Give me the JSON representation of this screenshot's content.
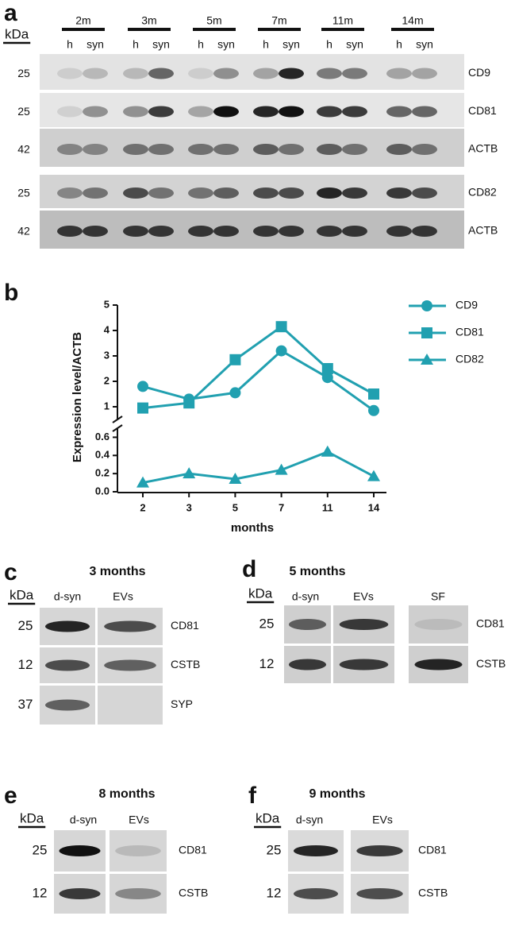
{
  "panel_a": {
    "label": "a",
    "kda_header": "kDa",
    "groups": [
      {
        "label": "2m",
        "lanes": [
          "h",
          "syn"
        ]
      },
      {
        "label": "3m",
        "lanes": [
          "h",
          "syn"
        ]
      },
      {
        "label": "5m",
        "lanes": [
          "h",
          "syn"
        ]
      },
      {
        "label": "7m",
        "lanes": [
          "h",
          "syn"
        ]
      },
      {
        "label": "11m",
        "lanes": [
          "h",
          "syn"
        ]
      },
      {
        "label": "14m",
        "lanes": [
          "h",
          "syn"
        ]
      }
    ],
    "rows": [
      {
        "kda": 25,
        "protein": "CD9"
      },
      {
        "kda": 25,
        "protein": "CD81"
      },
      {
        "kda": 42,
        "protein": "ACTB"
      },
      {
        "kda": 25,
        "protein": "CD82"
      },
      {
        "kda": 42,
        "protein": "ACTB"
      }
    ]
  },
  "chart_data": {
    "type": "line",
    "panel_label": "b",
    "ylabel": "Expression level/ACTB",
    "xlabel": "months",
    "categories": [
      "2",
      "3",
      "5",
      "7",
      "11",
      "14"
    ],
    "ysegments": [
      {
        "ylim": [
          0,
          0.7
        ],
        "yticks": [
          {
            "value": 0,
            "label": "0.0"
          },
          0.2,
          0.4,
          0.6
        ]
      },
      {
        "ylim": [
          0.5,
          5
        ],
        "yticks": [
          1,
          2,
          3,
          4,
          5
        ]
      }
    ],
    "series": [
      {
        "name": "CD9",
        "color": "#21a0b0",
        "marker": "circle",
        "values": [
          1.8,
          1.3,
          1.55,
          3.2,
          2.15,
          0.85
        ]
      },
      {
        "name": "CD81",
        "color": "#21a0b0",
        "marker": "square",
        "values": [
          0.95,
          1.15,
          2.85,
          4.15,
          2.5,
          1.5
        ]
      },
      {
        "name": "CD82",
        "color": "#21a0b0",
        "marker": "triangle",
        "values": [
          0.1,
          0.2,
          0.14,
          0.24,
          0.44,
          0.17
        ]
      }
    ],
    "legend": "upper right"
  },
  "panel_c": {
    "label": "c",
    "title": "3 months",
    "kda_header": "kDa",
    "lanes": [
      "d-syn",
      "EVs"
    ],
    "rows": [
      {
        "kda": 25,
        "protein": "CD81"
      },
      {
        "kda": 12,
        "protein": "CSTB"
      },
      {
        "kda": 37,
        "protein": "SYP"
      }
    ]
  },
  "panel_d": {
    "label": "d",
    "title": "5 months",
    "kda_header": "kDa",
    "lanes": [
      "d-syn",
      "EVs",
      "SF"
    ],
    "rows": [
      {
        "kda": 25,
        "protein": "CD81"
      },
      {
        "kda": 12,
        "protein": "CSTB"
      }
    ]
  },
  "panel_e": {
    "label": "e",
    "title": "8 months",
    "kda_header": "kDa",
    "lanes": [
      "d-syn",
      "EVs"
    ],
    "rows": [
      {
        "kda": 25,
        "protein": "CD81"
      },
      {
        "kda": 12,
        "protein": "CSTB"
      }
    ]
  },
  "panel_f": {
    "label": "f",
    "title": "9 months",
    "kda_header": "kDa",
    "lanes": [
      "d-syn",
      "EVs"
    ],
    "rows": [
      {
        "kda": 25,
        "protein": "CD81"
      },
      {
        "kda": 12,
        "protein": "CSTB"
      }
    ]
  }
}
